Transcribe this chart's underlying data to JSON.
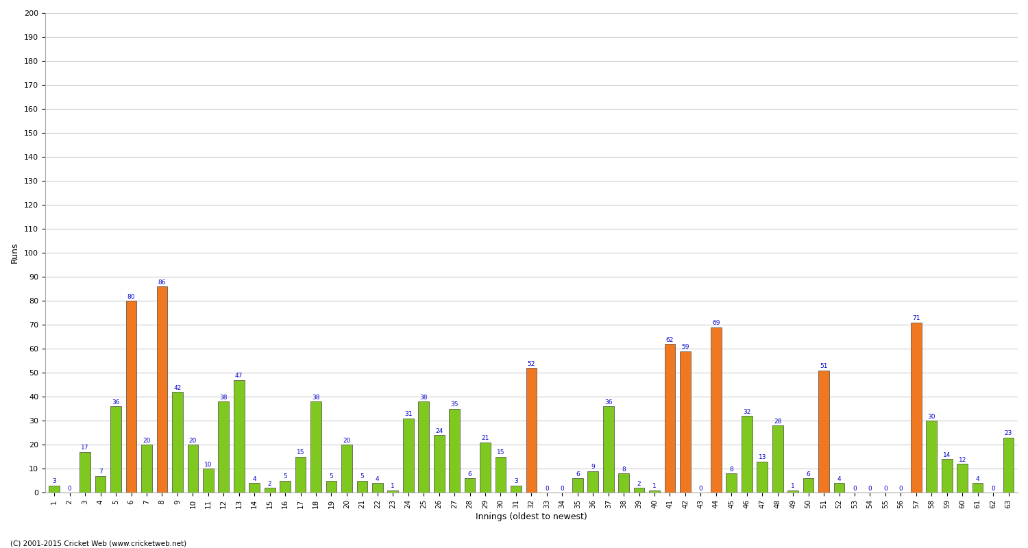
{
  "xlabel": "Innings (oldest to newest)",
  "ylabel": "Runs",
  "ylim": [
    0,
    200
  ],
  "innings_labels": [
    "1",
    "2",
    "3",
    "4",
    "5",
    "6",
    "7",
    "8",
    "9",
    "10",
    "11",
    "12",
    "13",
    "14",
    "15",
    "16",
    "17",
    "18",
    "19",
    "20",
    "21",
    "22",
    "23",
    "24",
    "25",
    "26",
    "27",
    "28",
    "29",
    "30",
    "31",
    "32",
    "33",
    "34",
    "35",
    "36",
    "37",
    "38",
    "39",
    "40",
    "41",
    "42",
    "43",
    "44",
    "45",
    "46",
    "47",
    "48",
    "49",
    "50",
    "51",
    "52",
    "53",
    "54",
    "55",
    "56",
    "57",
    "58",
    "59",
    "60",
    "61",
    "62",
    "63"
  ],
  "values": [
    3,
    0,
    17,
    7,
    36,
    80,
    20,
    86,
    42,
    20,
    10,
    38,
    47,
    4,
    2,
    5,
    15,
    38,
    5,
    20,
    5,
    4,
    1,
    31,
    38,
    24,
    35,
    6,
    21,
    15,
    3,
    52,
    0,
    0,
    6,
    9,
    36,
    8,
    2,
    1,
    62,
    59,
    0,
    69,
    8,
    32,
    13,
    28,
    1,
    6,
    51,
    4,
    0,
    0,
    0,
    0,
    71,
    30,
    14,
    12,
    4,
    0,
    23
  ],
  "colors": [
    "#7ec820",
    "#7ec820",
    "#7ec820",
    "#7ec820",
    "#7ec820",
    "#f07820",
    "#7ec820",
    "#f07820",
    "#7ec820",
    "#7ec820",
    "#7ec820",
    "#7ec820",
    "#7ec820",
    "#7ec820",
    "#7ec820",
    "#7ec820",
    "#7ec820",
    "#7ec820",
    "#7ec820",
    "#7ec820",
    "#7ec820",
    "#7ec820",
    "#7ec820",
    "#7ec820",
    "#7ec820",
    "#7ec820",
    "#7ec820",
    "#7ec820",
    "#7ec820",
    "#7ec820",
    "#7ec820",
    "#f07820",
    "#7ec820",
    "#7ec820",
    "#7ec820",
    "#7ec820",
    "#7ec820",
    "#7ec820",
    "#7ec820",
    "#7ec820",
    "#f07820",
    "#f07820",
    "#7ec820",
    "#f07820",
    "#7ec820",
    "#7ec820",
    "#7ec820",
    "#7ec820",
    "#7ec820",
    "#7ec820",
    "#f07820",
    "#7ec820",
    "#7ec820",
    "#7ec820",
    "#7ec820",
    "#7ec820",
    "#f07820",
    "#7ec820",
    "#7ec820",
    "#7ec820",
    "#7ec820",
    "#7ec820",
    "#7ec820"
  ],
  "background_color": "#ffffff",
  "grid_color": "#cccccc",
  "label_color": "#0000cc",
  "footer": "(C) 2001-2015 Cricket Web (www.cricketweb.net)"
}
